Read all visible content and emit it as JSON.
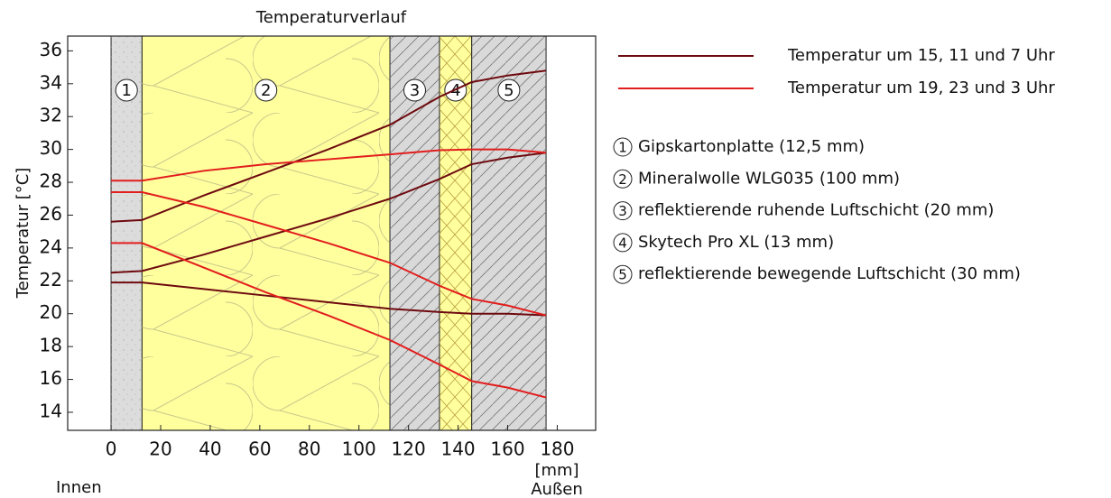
{
  "chart_data": {
    "type": "line",
    "title": "Temperaturverlauf",
    "ylabel": "Temperatur [°C]",
    "xunit": "[mm]",
    "inside_label": "Innen",
    "outside_label": "Außen",
    "x": [
      0,
      12.5,
      37.5,
      62.5,
      87.5,
      112.5,
      132.5,
      145.5,
      160,
      175.5
    ],
    "series": [
      {
        "name": "Temperatur um 15, 11 und 7 Uhr",
        "color": "#6e0a0f",
        "curves": [
          [
            25.6,
            25.7,
            27.2,
            28.6,
            30.0,
            31.5,
            33.2,
            34.1,
            34.5,
            34.8
          ],
          [
            22.5,
            22.6,
            23.6,
            24.7,
            25.8,
            27.0,
            28.2,
            29.1,
            29.5,
            29.8
          ],
          [
            21.9,
            21.9,
            21.5,
            21.1,
            20.7,
            20.3,
            20.1,
            20.0,
            20.0,
            19.9
          ]
        ]
      },
      {
        "name": "Temperatur um 19, 23 und 3 Uhr",
        "color": "#e21d1d",
        "curves": [
          [
            28.1,
            28.1,
            28.7,
            29.1,
            29.4,
            29.7,
            29.95,
            30.0,
            30.0,
            29.8
          ],
          [
            27.4,
            27.4,
            26.5,
            25.4,
            24.3,
            23.1,
            21.7,
            20.9,
            20.5,
            19.9
          ],
          [
            24.3,
            24.3,
            22.8,
            21.3,
            19.9,
            18.4,
            16.9,
            15.9,
            15.5,
            14.9
          ]
        ]
      }
    ],
    "layers": [
      {
        "label": "1",
        "start": 0,
        "end": 12.5,
        "color": "#dcdcdc",
        "description": "Gipskartonplatte (12,5 mm)"
      },
      {
        "label": "2",
        "start": 12.5,
        "end": 112.5,
        "color": "#ffff9e",
        "description": "Mineralwolle WLG035 (100 mm)"
      },
      {
        "label": "3",
        "start": 112.5,
        "end": 132.5,
        "color": "#d9d9d9",
        "description": "reflektierende ruhende Luftschicht (20 mm)"
      },
      {
        "label": "4",
        "start": 132.5,
        "end": 145.5,
        "color": "#ffff9e",
        "description": "Skytech Pro XL (13 mm)"
      },
      {
        "label": "5",
        "start": 145.5,
        "end": 175.5,
        "color": "#d9d9d9",
        "description": "reflektierende bewegende Luftschicht (30 mm)"
      }
    ],
    "xlim": [
      -17.5,
      195.5
    ],
    "ylim": [
      12.9,
      36.9
    ],
    "xticks": [
      0,
      20,
      40,
      60,
      80,
      100,
      120,
      140,
      160,
      180
    ],
    "yticks": [
      14,
      16,
      18,
      20,
      22,
      24,
      26,
      28,
      30,
      32,
      34,
      36
    ]
  }
}
